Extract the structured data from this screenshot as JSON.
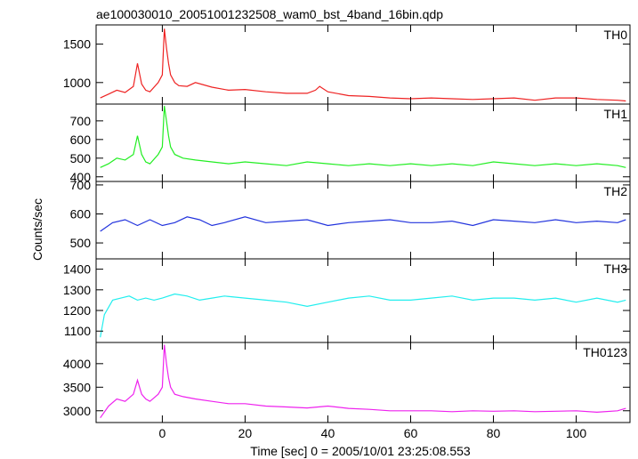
{
  "chart_data": {
    "type": "line",
    "title": "ae100030010_20051001232508_wam0_bst_4band_16bin.qdp",
    "xlabel": "Time [sec] 0 = 2005/10/01 23:25:08.553",
    "ylabel": "Counts/sec",
    "xlim": [
      -16,
      113
    ],
    "x_ticks": [
      0,
      20,
      40,
      60,
      80,
      100
    ],
    "grid": false,
    "panels": [
      {
        "name": "TH0",
        "color": "#ee2222",
        "ylim": [
          720,
          1750
        ],
        "y_ticks": [
          1000,
          1500
        ],
        "series": [
          {
            "x": [
              -15,
              -13,
              -11,
              -9,
              -7,
              -6,
              -5,
              -4,
              -3,
              -1,
              0,
              0.5,
              1,
              1.5,
              2,
              3,
              4,
              6,
              8,
              12,
              16,
              20,
              25,
              30,
              35,
              37,
              38,
              40,
              45,
              50,
              55,
              60,
              65,
              70,
              75,
              80,
              85,
              90,
              95,
              100,
              105,
              110,
              112
            ],
            "y": [
              800,
              850,
              900,
              870,
              950,
              1250,
              980,
              900,
              880,
              1000,
              1100,
              1700,
              1450,
              1250,
              1100,
              1000,
              960,
              950,
              1000,
              940,
              900,
              910,
              880,
              860,
              860,
              900,
              950,
              880,
              830,
              820,
              800,
              790,
              800,
              790,
              780,
              790,
              800,
              770,
              800,
              800,
              780,
              770,
              760
            ]
          }
        ]
      },
      {
        "name": "TH1",
        "color": "#22ee22",
        "ylim": [
          375,
          790
        ],
        "y_ticks": [
          400,
          500,
          600,
          700
        ],
        "series": [
          {
            "x": [
              -15,
              -13,
              -11,
              -9,
              -7,
              -6,
              -5,
              -4,
              -3,
              -1,
              0,
              0.5,
              1,
              1.5,
              2,
              3,
              5,
              8,
              12,
              16,
              20,
              25,
              30,
              35,
              40,
              45,
              50,
              55,
              60,
              65,
              70,
              75,
              80,
              85,
              90,
              95,
              100,
              105,
              110,
              112
            ],
            "y": [
              450,
              470,
              500,
              490,
              520,
              620,
              520,
              480,
              470,
              520,
              560,
              780,
              700,
              620,
              560,
              520,
              500,
              490,
              480,
              470,
              480,
              470,
              460,
              480,
              470,
              460,
              470,
              460,
              470,
              460,
              470,
              460,
              480,
              470,
              460,
              470,
              460,
              470,
              460,
              450
            ]
          }
        ]
      },
      {
        "name": "TH2",
        "color": "#2233dd",
        "ylim": [
          445,
          712
        ],
        "y_ticks": [
          500,
          600,
          700
        ],
        "series": [
          {
            "x": [
              -15,
              -12,
              -9,
              -6,
              -3,
              0,
              3,
              6,
              9,
              12,
              15,
              20,
              25,
              30,
              35,
              40,
              45,
              50,
              55,
              60,
              65,
              70,
              75,
              80,
              85,
              90,
              95,
              100,
              105,
              110,
              112
            ],
            "y": [
              540,
              570,
              580,
              560,
              580,
              560,
              570,
              590,
              580,
              560,
              570,
              590,
              570,
              575,
              580,
              560,
              570,
              575,
              580,
              570,
              570,
              575,
              560,
              580,
              575,
              570,
              580,
              570,
              575,
              570,
              580
            ]
          }
        ]
      },
      {
        "name": "TH3",
        "color": "#22eeee",
        "ylim": [
          1045,
          1450
        ],
        "y_ticks": [
          1100,
          1200,
          1300,
          1400
        ],
        "series": [
          {
            "x": [
              -15,
              -14,
              -12,
              -10,
              -8,
              -6,
              -4,
              -2,
              0,
              3,
              6,
              9,
              12,
              15,
              20,
              25,
              30,
              35,
              40,
              45,
              50,
              55,
              60,
              65,
              70,
              75,
              80,
              85,
              90,
              95,
              100,
              105,
              110,
              112
            ],
            "y": [
              1070,
              1180,
              1250,
              1260,
              1270,
              1250,
              1260,
              1250,
              1260,
              1280,
              1270,
              1250,
              1260,
              1270,
              1260,
              1250,
              1240,
              1220,
              1240,
              1260,
              1270,
              1250,
              1250,
              1260,
              1270,
              1250,
              1260,
              1260,
              1250,
              1260,
              1240,
              1260,
              1240,
              1250
            ]
          }
        ]
      },
      {
        "name": "TH0123",
        "color": "#ee22ee",
        "ylim": [
          2750,
          4450
        ],
        "y_ticks": [
          3000,
          3500,
          4000
        ],
        "series": [
          {
            "x": [
              -15,
              -13,
              -11,
              -9,
              -7,
              -6,
              -5,
              -4,
              -3,
              -1,
              0,
              0.5,
              1,
              1.5,
              2,
              3,
              5,
              8,
              12,
              16,
              20,
              25,
              30,
              35,
              40,
              45,
              50,
              55,
              60,
              65,
              70,
              75,
              80,
              85,
              90,
              95,
              100,
              105,
              110,
              112
            ],
            "y": [
              2850,
              3100,
              3250,
              3200,
              3350,
              3650,
              3350,
              3250,
              3200,
              3350,
              3500,
              4400,
              4000,
              3700,
              3500,
              3350,
              3300,
              3250,
              3200,
              3150,
              3150,
              3100,
              3080,
              3060,
              3100,
              3050,
              3030,
              3000,
              3000,
              3000,
              2980,
              3000,
              2990,
              3000,
              2980,
              2990,
              3000,
              2970,
              3000,
              3050
            ]
          }
        ]
      }
    ]
  }
}
